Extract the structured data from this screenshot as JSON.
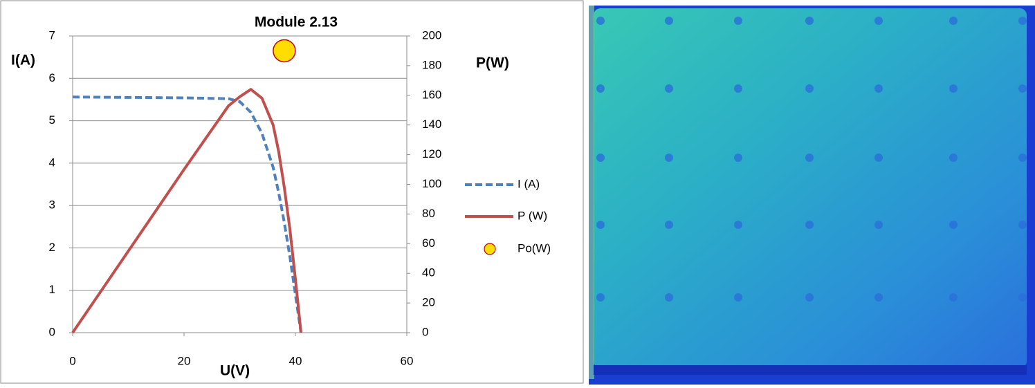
{
  "chart_data": {
    "type": "line",
    "title": "Module 2.13",
    "xlabel": "U(V)",
    "ylabel": "I(A)",
    "y2label": "P(W)",
    "xlim": [
      0,
      60
    ],
    "xticks": [
      0,
      20,
      40,
      60
    ],
    "ylim": [
      0,
      7
    ],
    "yticks": [
      0,
      1,
      2,
      3,
      4,
      5,
      6,
      7
    ],
    "y2lim": [
      0,
      200
    ],
    "y2ticks": [
      0,
      20,
      40,
      60,
      80,
      100,
      120,
      140,
      160,
      180,
      200
    ],
    "grid": true,
    "legend": "right",
    "series": [
      {
        "name": "I (A)",
        "color": "#4f81bd",
        "style": "dashed",
        "axis": "y",
        "x": [
          0,
          10,
          20,
          28,
          30,
          32,
          34,
          36,
          37,
          38,
          39,
          40,
          41
        ],
        "values": [
          5.56,
          5.55,
          5.54,
          5.52,
          5.45,
          5.2,
          4.7,
          3.9,
          3.3,
          2.6,
          1.8,
          0.9,
          0
        ]
      },
      {
        "name": "P (W)",
        "color": "#c0504d",
        "style": "solid",
        "axis": "y2",
        "x": [
          0,
          10,
          20,
          28,
          30,
          32,
          34,
          36,
          37,
          38,
          39,
          40,
          41
        ],
        "values": [
          0,
          55,
          110,
          153,
          159,
          164,
          158,
          140,
          122,
          98,
          70,
          36,
          0
        ]
      },
      {
        "name": "Po(W)",
        "color": "#ffdd00",
        "edgecolor": "#c00000",
        "style": "marker",
        "axis": "y2",
        "x": [
          38
        ],
        "values": [
          190
        ]
      }
    ]
  }
}
